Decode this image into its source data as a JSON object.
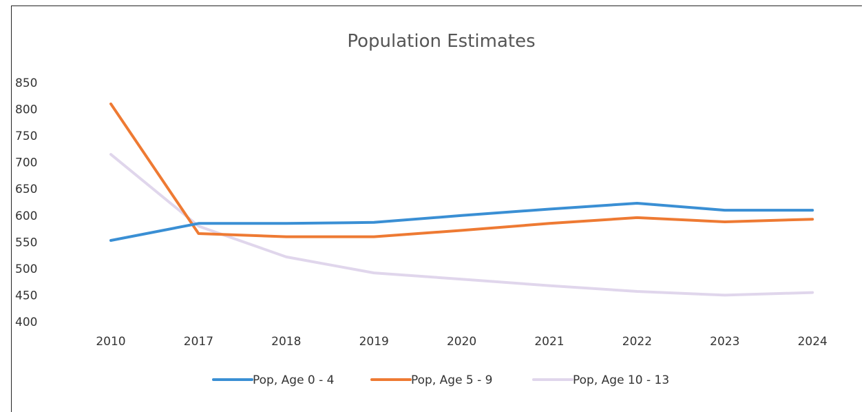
{
  "chart_data": {
    "type": "line",
    "title": "Population Estimates",
    "xlabel": "",
    "ylabel": "",
    "categories": [
      "2010",
      "2017",
      "2018",
      "2019",
      "2020",
      "2021",
      "2022",
      "2023",
      "2024"
    ],
    "ylim": [
      400,
      850
    ],
    "yticks": [
      "850",
      "800",
      "750",
      "700",
      "650",
      "600",
      "550",
      "500",
      "450",
      "400"
    ],
    "grid": false,
    "legend_position": "bottom",
    "series": [
      {
        "name": "Pop, Age 0 - 4",
        "color": "#3a8fd4",
        "values": [
          553,
          585,
          585,
          587,
          600,
          612,
          623,
          610,
          610
        ]
      },
      {
        "name": "Pop, Age 5 - 9",
        "color": "#ee7a33",
        "values": [
          810,
          566,
          560,
          560,
          572,
          585,
          596,
          588,
          593
        ]
      },
      {
        "name": "Pop, Age 10 - 13",
        "color": "#e0d6ec",
        "values": [
          715,
          580,
          522,
          492,
          480,
          468,
          457,
          450,
          455
        ]
      }
    ]
  }
}
